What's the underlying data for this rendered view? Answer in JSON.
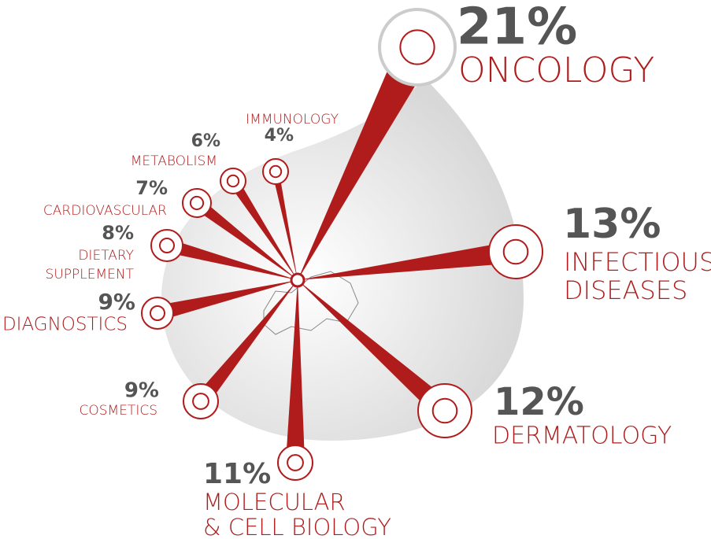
{
  "chart_data": {
    "type": "radial",
    "categories": [
      [
        "ONCOLOGY"
      ],
      [
        "INFECTIOUS",
        "DISEASES"
      ],
      [
        "DERMATOLOGY"
      ],
      [
        "MOLECULAR",
        "& CELL BIOLOGY"
      ],
      [
        "COSMETICS"
      ],
      [
        "DIAGNOSTICS"
      ],
      [
        "DIETARY",
        "SUPPLEMENT"
      ],
      [
        "CARDIOVASCULAR"
      ],
      [
        "METABOLISM"
      ],
      [
        "IMMUNOLOGY"
      ]
    ],
    "values": [
      21,
      13,
      12,
      11,
      9,
      9,
      8,
      7,
      6,
      4
    ],
    "value_labels": [
      "21%",
      "13%",
      "12%",
      "11%",
      "9%",
      "9%",
      "8%",
      "7%",
      "6%",
      "4%"
    ],
    "color": "#b01c1c"
  }
}
